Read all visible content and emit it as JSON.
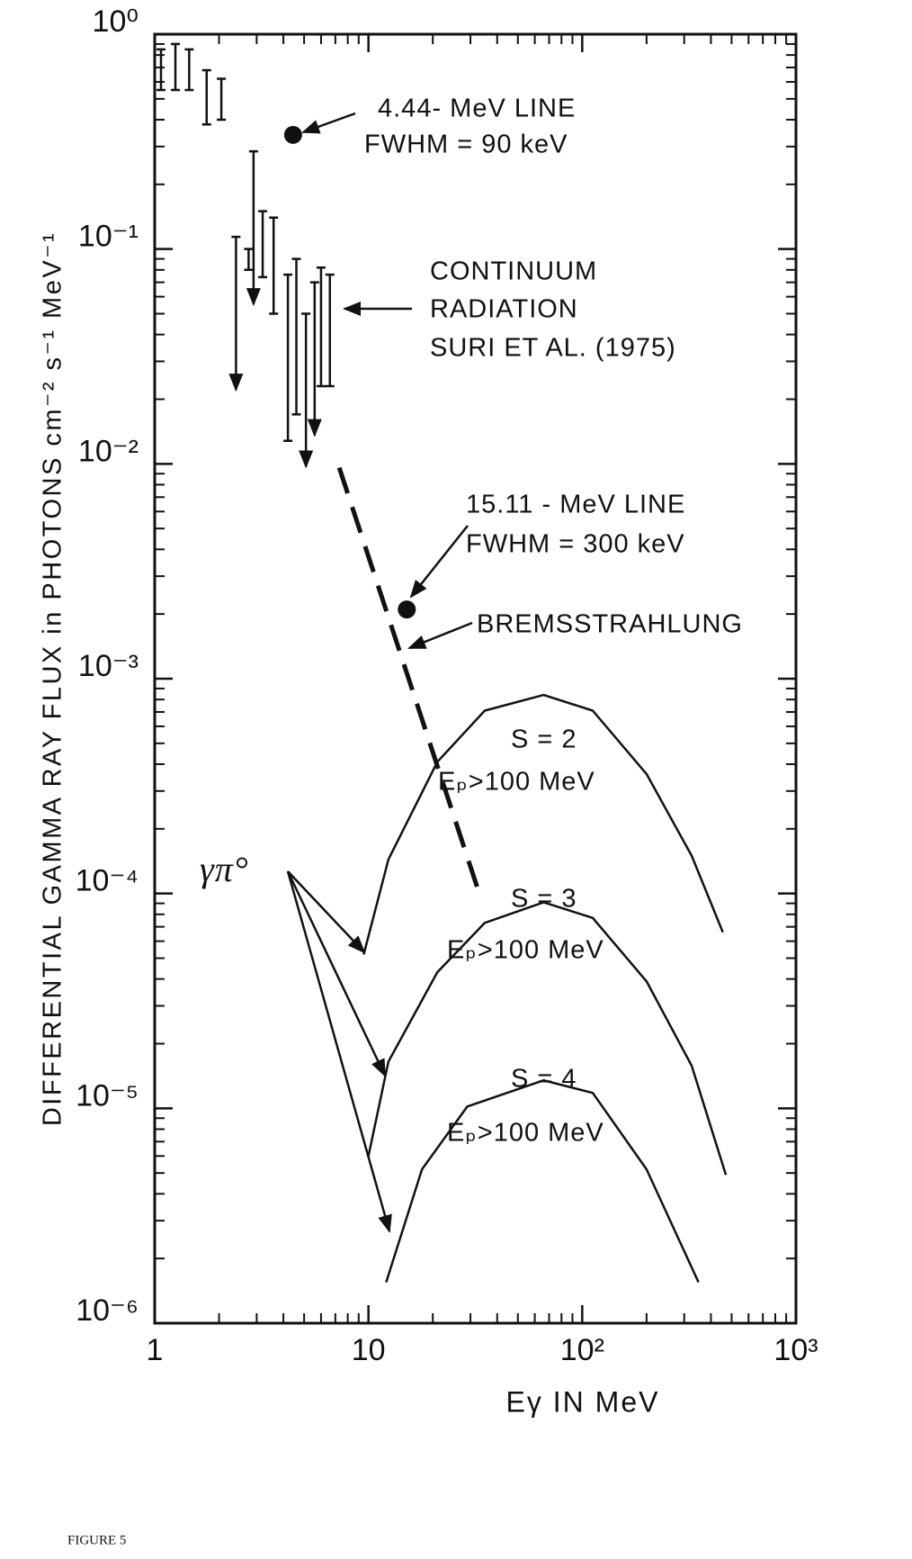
{
  "chart_data": {
    "type": "log-spectrum",
    "x_label": "Eγ IN MeV",
    "y_label": "DIFFERENTIAL GAMMA RAY FLUX in PHOTONS cm⁻² s⁻¹ MeV⁻¹",
    "footer": "FIGURE 5",
    "xscale": "log",
    "yscale": "log",
    "xlim": [
      1,
      1000
    ],
    "ylim": [
      1e-06,
      1
    ],
    "xticks": [
      1,
      10,
      {
        "value": 100,
        "label": "10²"
      },
      {
        "value": 1000,
        "label": "10³"
      }
    ],
    "yticks": [
      {
        "value": 1e-06,
        "label": "10⁻⁶"
      },
      {
        "value": 1e-05,
        "label": "10⁻⁵"
      },
      {
        "value": 0.0001,
        "label": "10⁻⁴"
      },
      {
        "value": 0.001,
        "label": "10⁻³"
      },
      {
        "value": 0.01,
        "label": "10⁻²"
      },
      {
        "value": 0.1,
        "label": "10⁻¹"
      },
      {
        "value": 1,
        "label": "10⁰"
      }
    ],
    "xminorticks": [
      2,
      3,
      4,
      5,
      6,
      7,
      8,
      9,
      20,
      30,
      40,
      50,
      60,
      70,
      80,
      90,
      200,
      300,
      400,
      500,
      600,
      700,
      800,
      900
    ],
    "yminorticks": [
      2e-06,
      3e-06,
      4e-06,
      5e-06,
      6e-06,
      7e-06,
      8e-06,
      9e-06,
      2e-05,
      3e-05,
      4e-05,
      5e-05,
      6e-05,
      7e-05,
      8e-05,
      9e-05,
      0.0002,
      0.0003,
      0.0004,
      0.0005,
      0.0006,
      0.0007,
      0.0008,
      0.0009,
      0.002,
      0.003,
      0.004,
      0.005,
      0.006,
      0.007,
      0.008,
      0.009,
      0.02,
      0.03,
      0.04,
      0.05,
      0.06,
      0.07,
      0.08,
      0.09,
      0.2,
      0.3,
      0.4,
      0.5,
      0.6,
      0.7,
      0.8,
      0.9
    ],
    "color": "#111111",
    "error_bars": {
      "x": [
        1.07,
        1.25,
        1.45,
        1.75,
        2.05,
        2.75,
        3.2,
        3.6,
        4.2,
        4.6,
        6.0,
        6.6
      ],
      "low": [
        0.55,
        0.55,
        0.55,
        0.38,
        0.4,
        0.08,
        0.074,
        0.05,
        0.0128,
        0.017,
        0.023,
        0.023
      ],
      "high": [
        0.85,
        0.9,
        0.85,
        0.68,
        0.62,
        0.1,
        0.15,
        0.14,
        0.076,
        0.09,
        0.082,
        0.076
      ]
    },
    "upper_limits": {
      "x": [
        2.4,
        2.9,
        5.1,
        5.6
      ],
      "values": [
        0.114,
        0.285,
        0.05,
        0.07
      ]
    },
    "line_points": {
      "x": [
        4.44,
        15.11
      ],
      "values": [
        0.34,
        0.0021
      ]
    },
    "bremsstrahlung": {
      "x": [
        7.3,
        33
      ],
      "values": [
        0.0096,
        0.0001
      ]
    },
    "series": [
      {
        "x": [
          9.5,
          12.4,
          21,
          35,
          66,
          112,
          200,
          325,
          455
        ],
        "values": [
          5.2e-05,
          0.000144,
          0.00041,
          0.00071,
          0.00084,
          0.00071,
          0.00036,
          0.00015,
          6.6e-05
        ]
      },
      {
        "x": [
          10,
          12.4,
          21,
          35,
          66,
          112,
          200,
          325,
          470
        ],
        "values": [
          6e-06,
          1.65e-05,
          4.3e-05,
          7.3e-05,
          9.1e-05,
          7.7e-05,
          3.9e-05,
          1.58e-05,
          4.9e-06
        ]
      },
      {
        "x": [
          12.1,
          17.8,
          29,
          66,
          112,
          200,
          350
        ],
        "values": [
          1.55e-06,
          5.2e-06,
          1.02e-05,
          1.35e-05,
          1.18e-05,
          5.2e-06,
          1.55e-06
        ]
      }
    ],
    "annotations": [
      "4.44- MeV  LINE",
      "FWHM = 90 keV",
      "CONTINUUM",
      "RADIATION",
      "SURI  ET  AL. (1975)",
      "15.11 - MeV  LINE",
      "FWHM = 300 keV",
      "BREMSSTRAHLUNG",
      "S = 2",
      "Eₚ>100 MeV",
      "S = 3",
      "Eₚ>100 MeV",
      "S = 4",
      "Eₚ>100 MeV",
      "γπ°"
    ]
  }
}
